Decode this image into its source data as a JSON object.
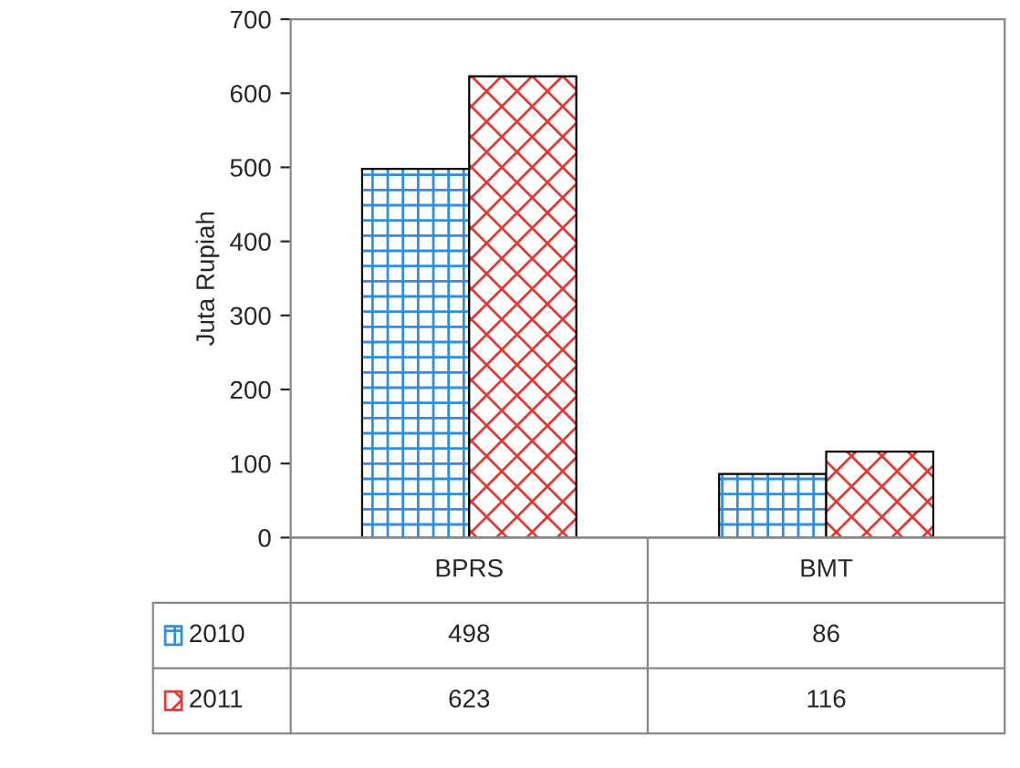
{
  "chart_data": {
    "type": "bar",
    "ylabel": "Juta Rupiah",
    "categories": [
      "BPRS",
      "BMT"
    ],
    "series": [
      {
        "name": "2010",
        "color": "#2f8fdc",
        "values": [
          498,
          86
        ]
      },
      {
        "name": "2011",
        "color": "#e53935",
        "values": [
          623,
          116
        ]
      }
    ],
    "ylim": [
      0,
      700
    ],
    "yticks": [
      0,
      100,
      200,
      300,
      400,
      500,
      600,
      700
    ],
    "grid": false,
    "legend": "bottom",
    "data_labels": true
  }
}
